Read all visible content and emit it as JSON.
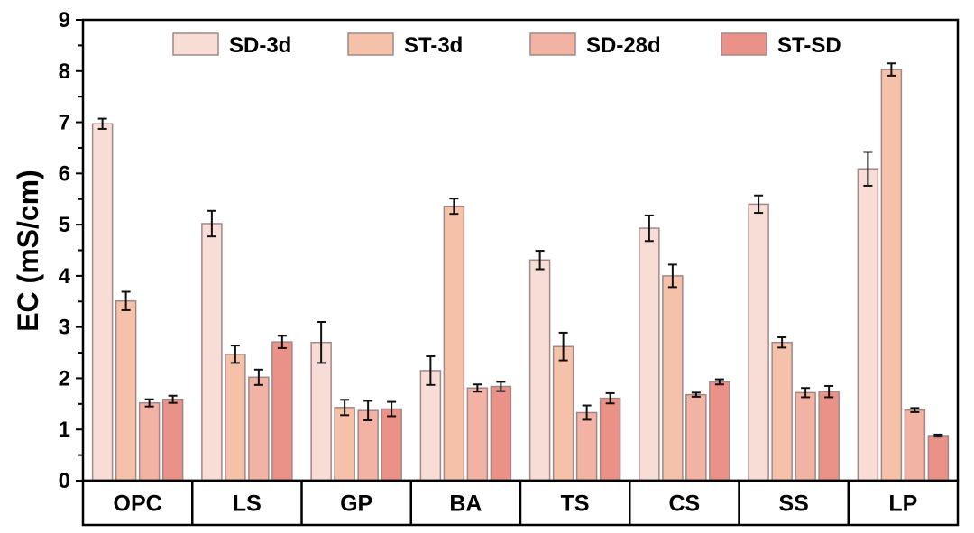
{
  "chart_data": {
    "type": "bar",
    "title": "",
    "xlabel": "",
    "ylabel": "EC (mS/cm)",
    "ylim": [
      0,
      9
    ],
    "yticks": [
      "0",
      "1",
      "2",
      "3",
      "4",
      "5",
      "6",
      "7",
      "8",
      "9"
    ],
    "categories": [
      "OPC",
      "LS",
      "GP",
      "BA",
      "TS",
      "CS",
      "SS",
      "LP"
    ],
    "legend_position": "top",
    "series": [
      {
        "name": "SD-3d",
        "color": "#f8ddd6",
        "values": [
          6.97,
          5.02,
          2.7,
          2.15,
          4.31,
          4.93,
          5.4,
          6.09
        ],
        "errors": [
          0.1,
          0.25,
          0.4,
          0.28,
          0.18,
          0.25,
          0.17,
          0.33
        ]
      },
      {
        "name": "ST-3d",
        "color": "#f6c1a9",
        "values": [
          3.51,
          2.47,
          1.43,
          5.36,
          2.62,
          4.0,
          2.7,
          8.03
        ],
        "errors": [
          0.18,
          0.17,
          0.15,
          0.15,
          0.27,
          0.22,
          0.1,
          0.12
        ]
      },
      {
        "name": "SD-28d",
        "color": "#f2b2a4",
        "values": [
          1.52,
          2.02,
          1.37,
          1.81,
          1.33,
          1.68,
          1.72,
          1.38
        ],
        "errors": [
          0.07,
          0.15,
          0.19,
          0.07,
          0.14,
          0.04,
          0.09,
          0.04
        ]
      },
      {
        "name": "ST-SD",
        "color": "#ea9288",
        "values": [
          1.59,
          2.71,
          1.4,
          1.84,
          1.61,
          1.93,
          1.74,
          0.88
        ],
        "errors": [
          0.07,
          0.12,
          0.14,
          0.09,
          0.1,
          0.05,
          0.11,
          0.02
        ]
      }
    ],
    "bar_edge_color": "#a08888",
    "grid": false
  }
}
